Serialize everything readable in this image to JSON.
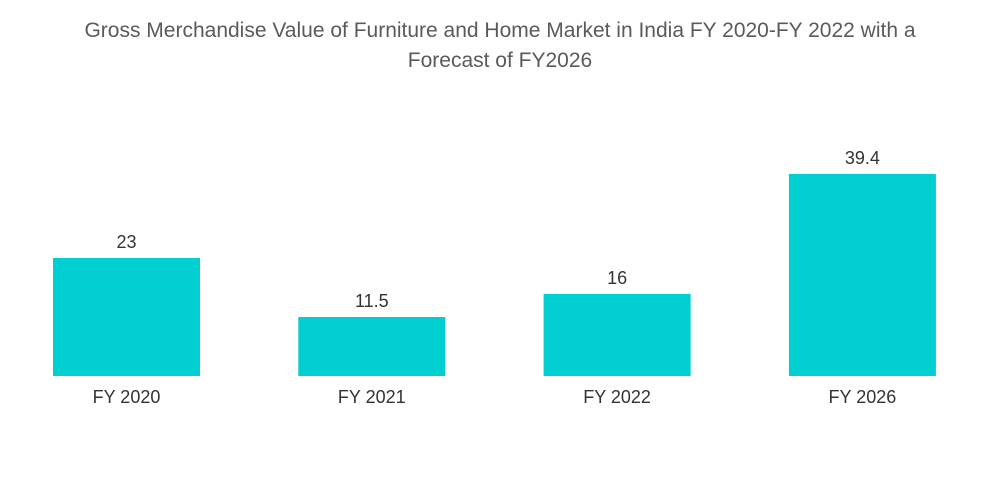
{
  "chart_data": {
    "type": "bar",
    "title_lines": [
      "Gross Merchandise Value of Furniture and Home Market in India FY 2020-FY 2022 with a",
      "Forecast of FY2026"
    ],
    "categories": [
      "FY 2020",
      "FY 2021",
      "FY 2022",
      "FY 2026"
    ],
    "values": [
      23,
      11.5,
      16,
      39.4
    ],
    "value_labels": [
      "23",
      "11.5",
      "16",
      "39.4"
    ],
    "xlabel": "",
    "ylabel": "",
    "ylim": [
      0,
      40
    ],
    "grid": false,
    "legend": "none",
    "bar_color": "#00CED1"
  }
}
